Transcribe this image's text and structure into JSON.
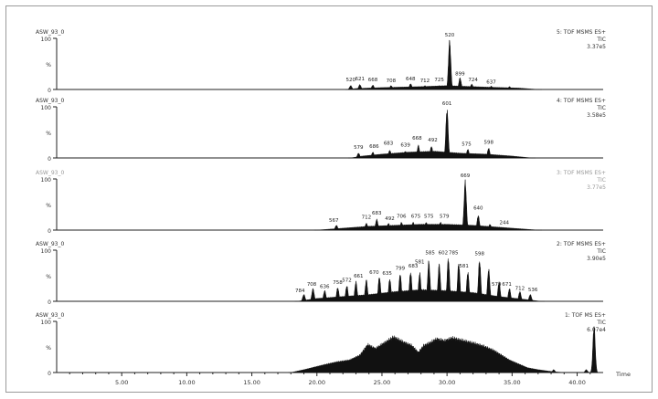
{
  "chart_data": {
    "type": "area",
    "x_axis": {
      "ticks": [
        "5.00",
        "10.00",
        "15.00",
        "20.00",
        "25.00",
        "30.00",
        "35.00",
        "40.00"
      ],
      "unit": "Time",
      "range": [
        0,
        42
      ]
    },
    "traces": [
      {
        "sample": "ASW_93_0",
        "function": "5: TOF MSMS ES+",
        "detector": "TIC",
        "intensity": "3.37e5",
        "y_ticks": [
          "100",
          "%",
          "0"
        ],
        "faint": false,
        "envelope": [
          [
            22.4,
            0
          ],
          [
            23.0,
            2
          ],
          [
            25.0,
            4
          ],
          [
            28.0,
            6
          ],
          [
            30.0,
            8
          ],
          [
            33.0,
            5
          ],
          [
            35.5,
            3
          ],
          [
            36.5,
            1
          ],
          [
            37.0,
            0
          ]
        ],
        "peaks": [
          [
            22.6,
            8
          ],
          [
            23.3,
            10
          ],
          [
            24.3,
            9
          ],
          [
            25.7,
            8
          ],
          [
            27.2,
            12
          ],
          [
            28.3,
            8
          ],
          [
            29.4,
            8
          ],
          [
            30.2,
            100
          ],
          [
            31.0,
            24
          ],
          [
            31.9,
            11
          ],
          [
            33.4,
            7
          ],
          [
            34.8,
            6
          ]
        ],
        "peak_labels": [
          {
            "t": 22.6,
            "h": 16,
            "text": "520"
          },
          {
            "t": 23.3,
            "h": 18,
            "text": "621"
          },
          {
            "t": 24.3,
            "h": 16,
            "text": "668"
          },
          {
            "t": 25.7,
            "h": 14,
            "text": "708"
          },
          {
            "t": 27.2,
            "h": 18,
            "text": "648"
          },
          {
            "t": 28.3,
            "h": 14,
            "text": "712"
          },
          {
            "t": 29.4,
            "h": 16,
            "text": "725"
          },
          {
            "t": 30.2,
            "h": 104,
            "text": "520"
          },
          {
            "t": 31.0,
            "h": 28,
            "text": "899"
          },
          {
            "t": 32.0,
            "h": 16,
            "text": "724"
          },
          {
            "t": 33.4,
            "h": 12,
            "text": "637"
          }
        ]
      },
      {
        "sample": "ASW_93_0",
        "function": "4: TOF MSMS ES+",
        "detector": "TIC",
        "intensity": "3.58e5",
        "y_ticks": [
          "100",
          "%",
          "0"
        ],
        "faint": false,
        "envelope": [
          [
            22.6,
            0
          ],
          [
            23.5,
            4
          ],
          [
            25.0,
            8
          ],
          [
            27.0,
            12
          ],
          [
            29.0,
            14
          ],
          [
            31.0,
            10
          ],
          [
            33.0,
            8
          ],
          [
            35.0,
            4
          ],
          [
            36.5,
            0
          ]
        ],
        "peaks": [
          [
            23.2,
            10
          ],
          [
            24.3,
            12
          ],
          [
            25.6,
            16
          ],
          [
            26.8,
            14
          ],
          [
            27.8,
            26
          ],
          [
            28.8,
            24
          ],
          [
            30.0,
            100
          ],
          [
            31.6,
            18
          ],
          [
            33.2,
            20
          ]
        ],
        "peak_labels": [
          {
            "t": 23.2,
            "h": 18,
            "text": "579"
          },
          {
            "t": 24.4,
            "h": 20,
            "text": "686"
          },
          {
            "t": 25.5,
            "h": 26,
            "text": "683"
          },
          {
            "t": 26.8,
            "h": 22,
            "text": "639"
          },
          {
            "t": 27.7,
            "h": 36,
            "text": "668"
          },
          {
            "t": 28.9,
            "h": 32,
            "text": "492"
          },
          {
            "t": 30.0,
            "h": 104,
            "text": "601"
          },
          {
            "t": 31.5,
            "h": 24,
            "text": "575"
          },
          {
            "t": 33.2,
            "h": 28,
            "text": "598"
          }
        ]
      },
      {
        "sample": "ASW_93_0",
        "function": "3: TOF MSMS ES+",
        "detector": "TIC",
        "intensity": "3.77e5",
        "y_ticks": [
          "100",
          "%",
          "0"
        ],
        "faint": true,
        "envelope": [
          [
            20.0,
            0
          ],
          [
            22.0,
            4
          ],
          [
            24.0,
            8
          ],
          [
            26.0,
            10
          ],
          [
            28.0,
            12
          ],
          [
            30.0,
            12
          ],
          [
            32.0,
            10
          ],
          [
            34.0,
            6
          ],
          [
            36.0,
            2
          ],
          [
            37.0,
            0
          ]
        ],
        "peaks": [
          [
            21.5,
            10
          ],
          [
            23.8,
            14
          ],
          [
            24.6,
            22
          ],
          [
            25.5,
            14
          ],
          [
            26.5,
            16
          ],
          [
            27.4,
            16
          ],
          [
            28.4,
            16
          ],
          [
            29.5,
            16
          ],
          [
            31.4,
            100
          ],
          [
            32.4,
            30
          ],
          [
            33.3,
            12
          ]
        ],
        "peak_labels": [
          {
            "t": 21.3,
            "h": 16,
            "text": "567"
          },
          {
            "t": 23.8,
            "h": 22,
            "text": "712"
          },
          {
            "t": 24.6,
            "h": 30,
            "text": "683"
          },
          {
            "t": 25.6,
            "h": 20,
            "text": "492"
          },
          {
            "t": 26.5,
            "h": 24,
            "text": "706"
          },
          {
            "t": 27.6,
            "h": 24,
            "text": "675"
          },
          {
            "t": 28.6,
            "h": 24,
            "text": "575"
          },
          {
            "t": 29.8,
            "h": 24,
            "text": "579"
          },
          {
            "t": 31.4,
            "h": 104,
            "text": "669"
          },
          {
            "t": 32.4,
            "h": 40,
            "text": "640"
          },
          {
            "t": 34.4,
            "h": 12,
            "text": "244"
          }
        ]
      },
      {
        "sample": "ASW_93_0",
        "function": "2: TOF MSMS ES+",
        "detector": "TIC",
        "intensity": "3.90e5",
        "y_ticks": [
          "100",
          "%",
          "0"
        ],
        "faint": false,
        "envelope": [
          [
            18.5,
            0
          ],
          [
            20.0,
            6
          ],
          [
            22.0,
            10
          ],
          [
            24.0,
            14
          ],
          [
            26.0,
            20
          ],
          [
            28.0,
            24
          ],
          [
            30.0,
            22
          ],
          [
            32.0,
            18
          ],
          [
            34.0,
            10
          ],
          [
            36.0,
            4
          ],
          [
            37.2,
            0
          ]
        ],
        "peaks": [
          [
            19.0,
            14
          ],
          [
            19.7,
            26
          ],
          [
            20.6,
            22
          ],
          [
            21.6,
            28
          ],
          [
            22.3,
            32
          ],
          [
            23.0,
            40
          ],
          [
            23.8,
            44
          ],
          [
            24.8,
            50
          ],
          [
            25.6,
            46
          ],
          [
            26.4,
            56
          ],
          [
            27.2,
            60
          ],
          [
            27.9,
            58
          ],
          [
            28.6,
            82
          ],
          [
            29.4,
            76
          ],
          [
            30.1,
            88
          ],
          [
            30.9,
            78
          ],
          [
            31.6,
            60
          ],
          [
            32.5,
            84
          ],
          [
            33.2,
            66
          ],
          [
            34.0,
            40
          ],
          [
            34.8,
            26
          ],
          [
            35.6,
            20
          ],
          [
            36.4,
            14
          ]
        ],
        "peak_labels": [
          {
            "t": 18.7,
            "h": 18,
            "text": "784"
          },
          {
            "t": 19.6,
            "h": 30,
            "text": "708"
          },
          {
            "t": 20.6,
            "h": 26,
            "text": "636"
          },
          {
            "t": 21.6,
            "h": 34,
            "text": "758"
          },
          {
            "t": 22.3,
            "h": 38,
            "text": "572"
          },
          {
            "t": 23.2,
            "h": 46,
            "text": "661"
          },
          {
            "t": 24.4,
            "h": 54,
            "text": "670"
          },
          {
            "t": 25.4,
            "h": 52,
            "text": "635"
          },
          {
            "t": 26.4,
            "h": 62,
            "text": "799"
          },
          {
            "t": 27.4,
            "h": 66,
            "text": "683"
          },
          {
            "t": 27.9,
            "h": 74,
            "text": "581"
          },
          {
            "t": 28.7,
            "h": 92,
            "text": "585"
          },
          {
            "t": 29.7,
            "h": 92,
            "text": "602"
          },
          {
            "t": 30.5,
            "h": 92,
            "text": "785"
          },
          {
            "t": 31.3,
            "h": 66,
            "text": "581"
          },
          {
            "t": 32.5,
            "h": 90,
            "text": "598"
          },
          {
            "t": 33.8,
            "h": 30,
            "text": "579"
          },
          {
            "t": 34.6,
            "h": 30,
            "text": "671"
          },
          {
            "t": 35.6,
            "h": 22,
            "text": "712"
          },
          {
            "t": 36.6,
            "h": 20,
            "text": "536"
          }
        ]
      },
      {
        "sample": "ASW_93_0",
        "function": "1: TOF MS ES+",
        "detector": "TIC",
        "intensity": "6.07e4",
        "y_ticks": [
          "100",
          "%",
          "0"
        ],
        "faint": false,
        "envelope": [
          [
            18.0,
            0
          ],
          [
            19.0,
            6
          ],
          [
            20.5,
            16
          ],
          [
            21.5,
            22
          ],
          [
            22.5,
            26
          ],
          [
            23.3,
            36
          ],
          [
            23.9,
            58
          ],
          [
            24.5,
            50
          ],
          [
            25.2,
            62
          ],
          [
            25.9,
            74
          ],
          [
            26.6,
            64
          ],
          [
            27.3,
            56
          ],
          [
            27.8,
            42
          ],
          [
            28.2,
            56
          ],
          [
            28.7,
            62
          ],
          [
            29.2,
            70
          ],
          [
            29.8,
            66
          ],
          [
            30.4,
            72
          ],
          [
            31.0,
            68
          ],
          [
            31.6,
            64
          ],
          [
            32.2,
            60
          ],
          [
            32.9,
            54
          ],
          [
            33.6,
            46
          ],
          [
            34.2,
            36
          ],
          [
            34.8,
            26
          ],
          [
            35.5,
            18
          ],
          [
            36.2,
            10
          ],
          [
            37.0,
            6
          ],
          [
            37.8,
            3
          ],
          [
            38.5,
            1
          ],
          [
            39.0,
            0
          ]
        ],
        "peaks": [
          [
            41.3,
            96
          ],
          [
            40.7,
            6
          ],
          [
            38.2,
            6
          ]
        ],
        "peak_labels": []
      }
    ]
  }
}
